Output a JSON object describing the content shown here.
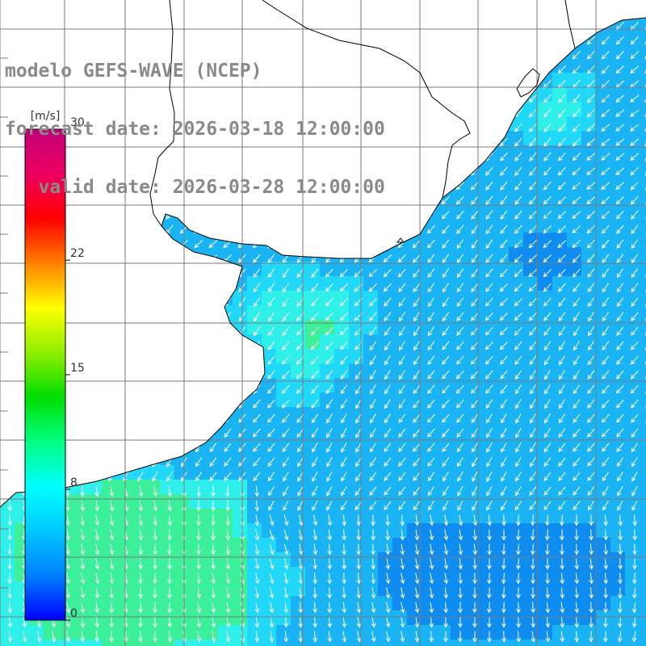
{
  "header": {
    "model": "modelo GEFS-WAVE (NCEP)",
    "forecast": "forecast date: 2026-03-18 12:00:00",
    "valid": "   valid date: 2026-03-28 12:00:00"
  },
  "colorbar": {
    "unit": "[m/s]",
    "ticks": [
      {
        "label": "30",
        "value": 30
      },
      {
        "label": "22",
        "value": 22
      },
      {
        "label": "15",
        "value": 15
      },
      {
        "label": "8",
        "value": 8
      },
      {
        "label": "0",
        "value": 0
      }
    ],
    "range": [
      0,
      30
    ],
    "stops": [
      "#0000ff",
      "#0080ff",
      "#00c8ff",
      "#00ffff",
      "#00ff80",
      "#00dd00",
      "#90ee00",
      "#ffff00",
      "#ff8000",
      "#ff0000",
      "#ee0060",
      "#c0007a"
    ]
  },
  "map": {
    "land_color": "#ffffff",
    "grid_color": "#7a7a7a",
    "coast_color": "#000000",
    "arrow_color": "#ffffff",
    "field_colors": {
      "deep_blue": "#0f8cf0",
      "mid_blue": "#1ab4f5",
      "cyan": "#22d8f8",
      "aqua": "#2ef0e8",
      "green": "#3cf09a"
    }
  }
}
